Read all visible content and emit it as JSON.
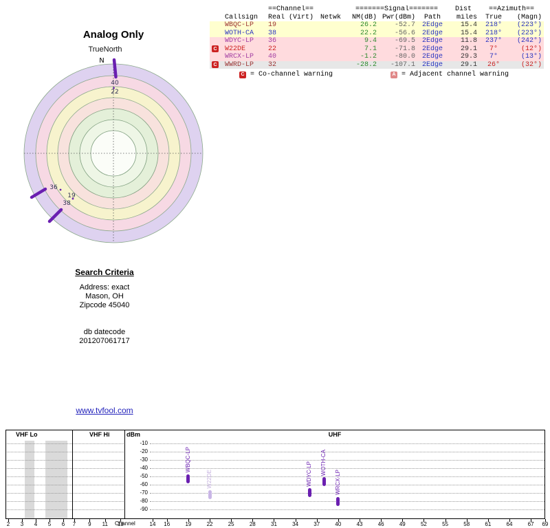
{
  "colors": {
    "marker_purple": "#6a1fb0",
    "row_yellow": "#ffffcf",
    "row_pink": "#ffdbde",
    "row_gray": "#e7e7e7",
    "warn_red": "#cc2222",
    "warn_adjacent": "#e08888",
    "link_blue": "#2222bb",
    "nm_green": "#2f8a2f",
    "path_blue": "#2a35c0"
  },
  "polar": {
    "title": "Analog Only",
    "north_ref": "TrueNorth",
    "north_label": "N",
    "top_labels": [
      "40",
      "22"
    ],
    "sw_labels": [
      "36",
      "19",
      "38"
    ]
  },
  "table": {
    "group_channel": "==Channel==",
    "group_signal": "=======Signal=======",
    "group_dist": "Dist",
    "group_azimuth": "==Azimuth==",
    "col_callsign": "Callsign",
    "col_real": "Real",
    "col_virt": "(Virt)",
    "col_netwk": "Netwk",
    "col_nm": "NM(dB)",
    "col_pwr": "Pwr(dBm)",
    "col_path": "Path",
    "col_miles": "miles",
    "col_true": "True",
    "col_magn": "(Magn)",
    "rows": [
      {
        "warn": "",
        "callsign": "WBQC-LP",
        "real": "19",
        "virt": "",
        "netwk": "",
        "nm": "26.2",
        "pwr": "-52.7",
        "path": "2Edge",
        "miles": "15.4",
        "true": "218°",
        "magn": "(223°)"
      },
      {
        "warn": "",
        "callsign": "WOTH-CA",
        "real": "38",
        "virt": "",
        "netwk": "",
        "nm": "22.2",
        "pwr": "-56.6",
        "path": "2Edge",
        "miles": "15.4",
        "true": "218°",
        "magn": "(223°)"
      },
      {
        "warn": "",
        "callsign": "WDYC-LP",
        "real": "36",
        "virt": "",
        "netwk": "",
        "nm": "9.4",
        "pwr": "-69.5",
        "path": "2Edge",
        "miles": "11.8",
        "true": "237°",
        "magn": "(242°)"
      },
      {
        "warn": "C",
        "callsign": "W22DE",
        "real": "22",
        "virt": "",
        "netwk": "",
        "nm": "7.1",
        "pwr": "-71.8",
        "path": "2Edge",
        "miles": "29.1",
        "true": "7°",
        "magn": "(12°)"
      },
      {
        "warn": "",
        "callsign": "WRCX-LP",
        "real": "40",
        "virt": "",
        "netwk": "",
        "nm": "-1.2",
        "pwr": "-80.0",
        "path": "2Edge",
        "miles": "29.3",
        "true": "7°",
        "magn": "(13°)"
      },
      {
        "warn": "C",
        "callsign": "WWRD-LP",
        "real": "32",
        "virt": "",
        "netwk": "",
        "nm": "-28.2",
        "pwr": "-107.1",
        "path": "2Edge",
        "miles": "29.1",
        "true": "26°",
        "magn": "(32°)"
      }
    ],
    "legend": {
      "co_icon": "C",
      "co_text": "= Co-channel warning",
      "adj_icon": "A",
      "adj_text": "= Adjacent channel warning"
    }
  },
  "search": {
    "heading": "Search Criteria",
    "lines": [
      "Address: exact",
      "Mason, OH",
      "Zipcode 45040",
      "",
      "",
      "db datecode",
      "201207061717"
    ]
  },
  "footer_link": "www.tvfool.com",
  "bottom_chart": {
    "bands": {
      "vhf_lo": "VHF Lo",
      "vhf_hi": "VHF Hi",
      "uhf": "UHF"
    },
    "ylabel": "dBm",
    "xlabel": "Channel",
    "yticks": [
      -10,
      -20,
      -30,
      -40,
      -50,
      -60,
      -70,
      -80,
      -90
    ],
    "vhf_lo_channels": [
      2,
      3,
      4,
      5,
      6
    ],
    "vhf_hi_channels": [
      7,
      9,
      11,
      13
    ],
    "uhf_channels": [
      14,
      16,
      19,
      22,
      25,
      28,
      31,
      34,
      37,
      40,
      43,
      46,
      49,
      52,
      55,
      58,
      61,
      64,
      67,
      69
    ]
  },
  "chart_data": [
    {
      "type": "scatter",
      "subtype": "polar-radar",
      "title": "Analog Only",
      "north_reference": "TrueNorth",
      "points": [
        {
          "azimuth_true_deg": 7,
          "channel_labels": [
            "40",
            "22"
          ]
        },
        {
          "azimuth_true_deg": 237,
          "channel_labels": [
            "36"
          ]
        },
        {
          "azimuth_true_deg": 218,
          "channel_labels": [
            "19",
            "38"
          ]
        }
      ]
    },
    {
      "type": "bar",
      "title": "",
      "xlabel": "Channel",
      "ylabel": "dBm",
      "ylim": [
        -95,
        -5
      ],
      "yticks": [
        -10,
        -20,
        -30,
        -40,
        -50,
        -60,
        -70,
        -80,
        -90
      ],
      "band_labels": [
        "VHF Lo",
        "VHF Hi",
        "UHF"
      ],
      "series": [
        {
          "callsign": "WBQC-LP",
          "channel": 19,
          "dbm": -52.7,
          "muted": false
        },
        {
          "callsign": "W22DE",
          "channel": 22,
          "dbm": -71.8,
          "muted": true
        },
        {
          "callsign": "WDYC-LP",
          "channel": 36,
          "dbm": -69.5,
          "muted": false
        },
        {
          "callsign": "WOTH-CA",
          "channel": 38,
          "dbm": -56.6,
          "muted": false
        },
        {
          "callsign": "WRCX-LP",
          "channel": 40,
          "dbm": -80.0,
          "muted": false
        }
      ]
    }
  ]
}
